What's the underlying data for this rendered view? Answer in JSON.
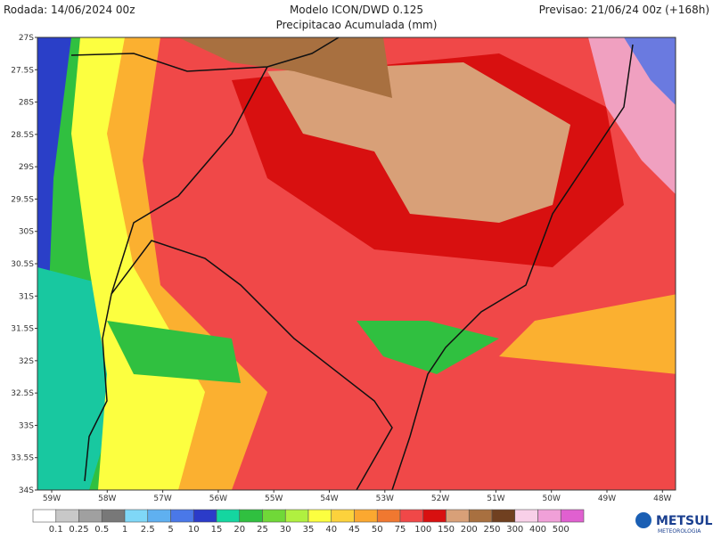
{
  "header": {
    "left": "Rodada: 14/06/2024 00z",
    "center": "Modelo ICON/DWD 0.125",
    "right": "Previsao: 21/06/24 00z (+168h)",
    "subtitle": "Precipitacao Acumulada (mm)"
  },
  "lat_labels": [
    "27S",
    "27.5S",
    "28S",
    "28.5S",
    "29S",
    "29.5S",
    "30S",
    "30.5S",
    "31S",
    "31.5S",
    "32S",
    "32.5S",
    "33S",
    "33.5S",
    "34S"
  ],
  "lon_labels": [
    "59W",
    "58W",
    "57W",
    "56W",
    "55W",
    "54W",
    "53W",
    "52W",
    "51W",
    "50W",
    "49W",
    "48W"
  ],
  "legend": {
    "labels": [
      "0.1",
      "0.25",
      "0.5",
      "1",
      "2.5",
      "5",
      "10",
      "15",
      "20",
      "25",
      "30",
      "35",
      "40",
      "45",
      "50",
      "75",
      "100",
      "150",
      "200",
      "250",
      "300",
      "400",
      "500"
    ]
  },
  "logo": {
    "name": "METSUL",
    "sub": "METEOROLOGIA"
  }
}
